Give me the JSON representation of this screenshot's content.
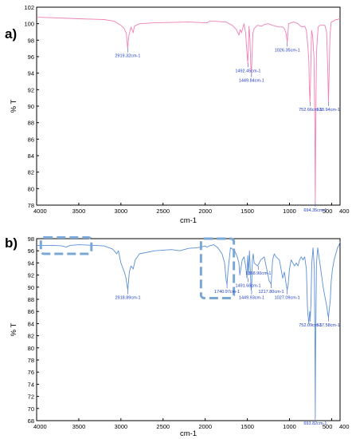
{
  "chart_data": [
    {
      "type": "line",
      "panel_label": "a)",
      "xlabel": "cm-1",
      "ylabel": "% T",
      "xlim": [
        4000,
        400
      ],
      "ylim": [
        78,
        102
      ],
      "x_ticks": [
        "4000",
        "3500",
        "3000",
        "2500",
        "2000",
        "1500",
        "1000",
        "500",
        "400"
      ],
      "y_ticks": [
        "78",
        "80",
        "82",
        "84",
        "86",
        "88",
        "90",
        "92",
        "94",
        "96",
        "98",
        "100",
        "102"
      ],
      "color": "#f080b4",
      "series": [
        {
          "x": [
            4000,
            3500,
            3200,
            3080,
            3000,
            2960,
            2935,
            2920,
            2905,
            2880,
            2855,
            2840,
            2780,
            2600,
            2200,
            1980,
            1950,
            1900,
            1750,
            1680,
            1630,
            1600,
            1585,
            1570,
            1540,
            1520,
            1505,
            1495,
            1488,
            1480,
            1470,
            1460,
            1452,
            1445,
            1435,
            1420,
            1380,
            1330,
            1300,
            1250,
            1200,
            1160,
            1120,
            1080,
            1060,
            1040,
            1032,
            1026,
            1020,
            1010,
            950,
            900,
            880,
            850,
            820,
            800,
            780,
            770,
            765,
            757,
            752,
            745,
            738,
            725,
            710,
            700,
            694,
            688,
            680,
            660,
            640,
            600,
            580,
            560,
            545,
            538,
            530,
            520,
            505,
            480,
            450,
            430,
            410,
            400
          ],
          "y": [
            100.8,
            100.6,
            100.5,
            100.3,
            99.8,
            99.4,
            98.8,
            97.0,
            98.6,
            99.6,
            98.9,
            99.7,
            100.0,
            100.1,
            100.2,
            100.1,
            100.3,
            100.3,
            100.2,
            99.8,
            99.3,
            98.6,
            99.3,
            98.9,
            100.0,
            98.8,
            96.5,
            95.2,
            97.0,
            99.7,
            98.2,
            95.1,
            94.0,
            95.8,
            98.8,
            99.4,
            99.8,
            99.7,
            99.9,
            100.0,
            99.8,
            99.7,
            99.6,
            99.6,
            99.4,
            98.8,
            98.2,
            97.7,
            98.6,
            100.0,
            100.2,
            100.0,
            99.8,
            99.6,
            99.7,
            99.2,
            97.0,
            95.5,
            92.5,
            90.5,
            91.8,
            96.0,
            99.2,
            98.5,
            96.0,
            88.0,
            78.3,
            88.0,
            96.5,
            99.6,
            99.8,
            99.8,
            99.8,
            99.0,
            94.0,
            90.5,
            93.5,
            98.5,
            100.2,
            100.3,
            100.5,
            100.5,
            100.6,
            100.6
          ]
        }
      ],
      "annotations": [
        {
          "text": "2919.32cm-1",
          "x": 2919,
          "y": 97.0
        },
        {
          "text": "1492.45cm-1",
          "x": 1492,
          "y": 95.2
        },
        {
          "text": "1449.84cm-1",
          "x": 1450,
          "y": 94.0
        },
        {
          "text": "1026.35cm-1",
          "x": 1026,
          "y": 97.7
        },
        {
          "text": "752.66cm-1",
          "x": 753,
          "y": 90.5
        },
        {
          "text": "538.94cm-1",
          "x": 539,
          "y": 90.5
        },
        {
          "text": "694.35cm-1",
          "x": 694,
          "y": 78.3
        }
      ]
    },
    {
      "type": "line",
      "panel_label": "b)",
      "xlabel": "cm-1",
      "ylabel": "% T",
      "xlim": [
        4000,
        400
      ],
      "ylim": [
        68,
        98
      ],
      "x_ticks": [
        "4000",
        "3500",
        "3000",
        "2500",
        "2000",
        "1500",
        "1000",
        "500",
        "400"
      ],
      "y_ticks": [
        "68",
        "70",
        "72",
        "74",
        "76",
        "78",
        "80",
        "82",
        "84",
        "86",
        "88",
        "90",
        "92",
        "94",
        "96",
        "98"
      ],
      "color": "#5b8fd6",
      "series": [
        {
          "x": [
            4000,
            3800,
            3700,
            3650,
            3600,
            3500,
            3200,
            3100,
            3050,
            3030,
            3000,
            2960,
            2940,
            2918,
            2900,
            2880,
            2855,
            2830,
            2780,
            2600,
            2400,
            2300,
            2200,
            2100,
            2050,
            2000,
            1980,
            1950,
            1900,
            1850,
            1800,
            1770,
            1750,
            1741,
            1730,
            1700,
            1650,
            1620,
            1600,
            1590,
            1560,
            1540,
            1520,
            1505,
            1495,
            1485,
            1475,
            1465,
            1455,
            1449,
            1440,
            1430,
            1420,
            1380,
            1340,
            1300,
            1270,
            1240,
            1217,
            1200,
            1180,
            1160,
            1120,
            1100,
            1080,
            1060,
            1040,
            1027,
            1015,
            1000,
            980,
            960,
            940,
            920,
            900,
            880,
            860,
            840,
            820,
            800,
            785,
            770,
            760,
            752,
            745,
            735,
            720,
            705,
            698,
            694,
            690,
            680,
            665,
            650,
            630,
            600,
            580,
            560,
            545,
            538,
            530,
            515,
            505,
            490,
            470,
            450,
            430,
            410,
            400
          ],
          "y": [
            96.9,
            96.9,
            96.8,
            96.6,
            96.9,
            97.0,
            96.8,
            96.3,
            95.5,
            96.0,
            94.0,
            92.5,
            91.5,
            89.5,
            92.5,
            93.5,
            93.0,
            94.5,
            95.5,
            96.0,
            96.2,
            96.0,
            96.4,
            96.5,
            96.6,
            96.8,
            96.6,
            96.8,
            97.0,
            96.5,
            95.5,
            94.0,
            91.0,
            90.5,
            92.5,
            96.5,
            96.0,
            95.0,
            94.0,
            92.0,
            94.5,
            95.0,
            93.5,
            91.5,
            95.2,
            92.0,
            96.0,
            93.0,
            89.5,
            90.0,
            94.5,
            95.5,
            94.0,
            93.5,
            94.5,
            95.0,
            93.0,
            91.0,
            90.5,
            94.5,
            95.5,
            95.0,
            94.5,
            93.0,
            91.5,
            92.5,
            90.5,
            89.5,
            90.5,
            93.0,
            94.5,
            94.0,
            93.5,
            94.0,
            93.5,
            94.5,
            95.0,
            94.5,
            95.0,
            93.0,
            86.0,
            84.0,
            86.0,
            85.0,
            87.5,
            94.0,
            96.5,
            93.0,
            80.0,
            68.8,
            80.0,
            94.0,
            96.5,
            95.0,
            93.0,
            90.0,
            88.5,
            87.0,
            85.5,
            85.0,
            86.0,
            88.0,
            91.0,
            93.0,
            94.5,
            95.5,
            96.5,
            97.0,
            97.5
          ]
        }
      ],
      "annotations": [
        {
          "text": "2918.89cm-1",
          "x": 2918,
          "y": 89.5
        },
        {
          "text": "1740.97cm-1",
          "x": 1741,
          "y": 90.5
        },
        {
          "text": "1491.68cm-1",
          "x": 1491,
          "y": 91.5
        },
        {
          "text": "1449.93cm-1",
          "x": 1449,
          "y": 89.5
        },
        {
          "text": "1368.90cm-1",
          "x": 1369,
          "y": 93.5
        },
        {
          "text": "1217.80cm-1",
          "x": 1217,
          "y": 90.5
        },
        {
          "text": "1027.09cm-1",
          "x": 1027,
          "y": 89.5
        },
        {
          "text": "752.09cm-1",
          "x": 752,
          "y": 85.0
        },
        {
          "text": "537.58cm-1",
          "x": 538,
          "y": 85.0
        },
        {
          "text": "693.82cm-1",
          "x": 694,
          "y": 68.8
        }
      ],
      "highlight_boxes": [
        {
          "x_range": [
            3950,
            3350
          ],
          "y_range": [
            95.5,
            98.2
          ]
        },
        {
          "x_range": [
            2050,
            1660
          ],
          "y_range": [
            88.2,
            98.0
          ]
        }
      ]
    }
  ]
}
